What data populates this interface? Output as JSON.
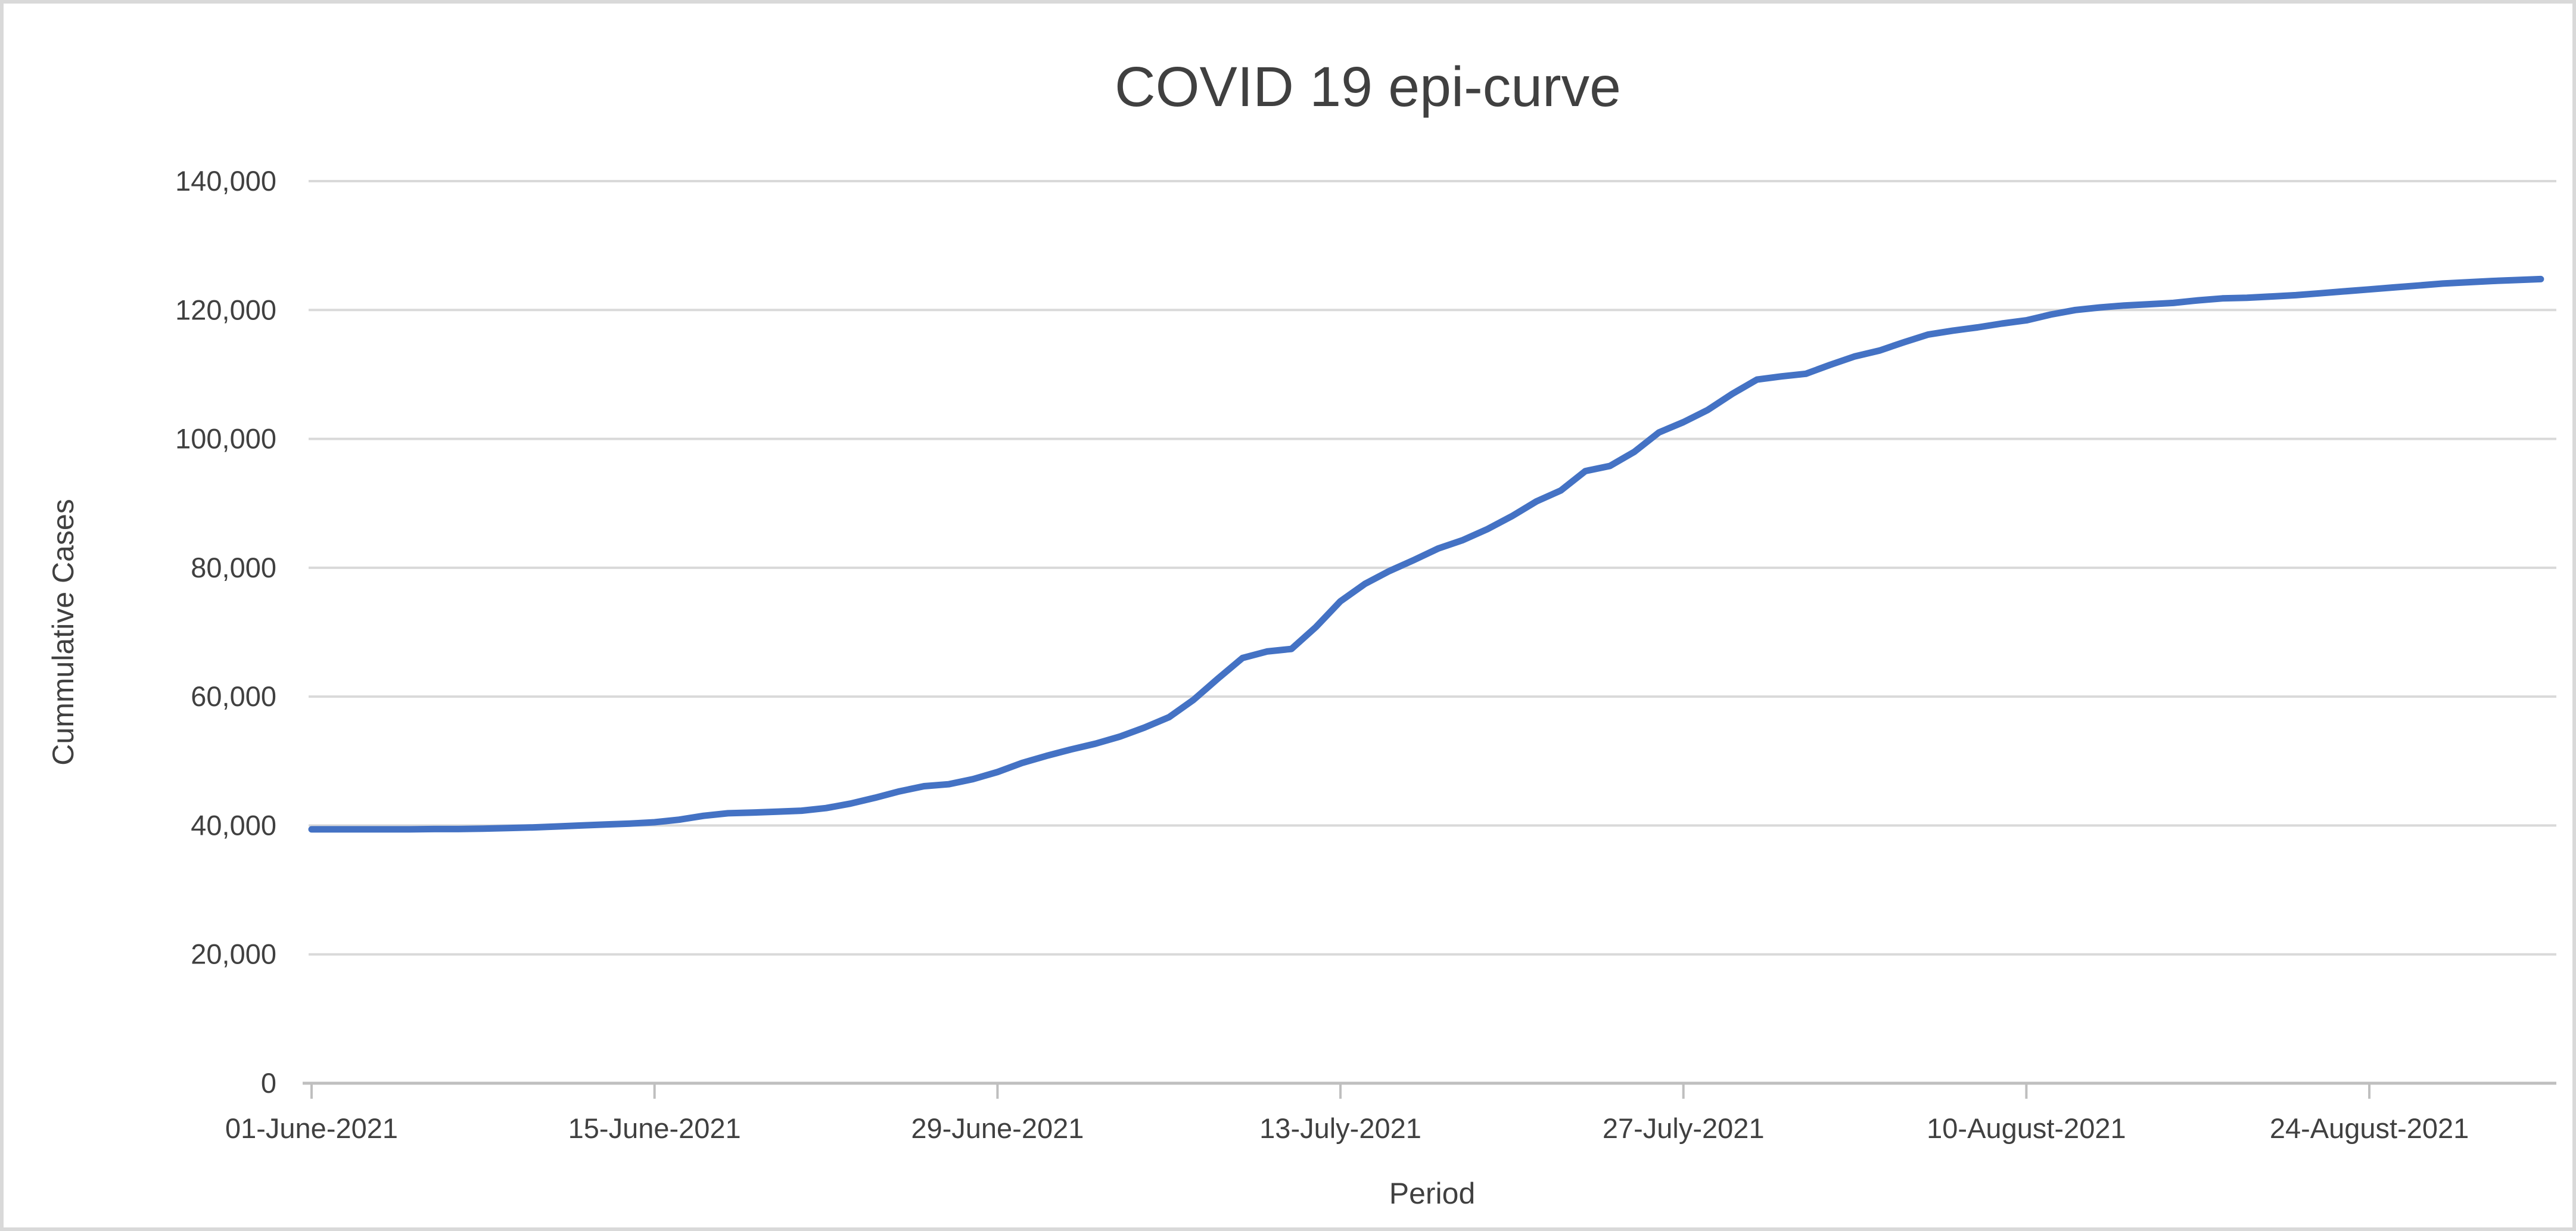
{
  "window": {
    "background": "#ffffff",
    "border_color": "#d9d9d9"
  },
  "chart_data": {
    "type": "line",
    "title": "COVID 19 epi-curve",
    "xlabel": "Period",
    "ylabel": "Cummulative Cases",
    "ylim": [
      0,
      140000
    ],
    "grid": true,
    "legend": "none",
    "line_color": "#4472C4",
    "gridline_color": "#d9d9d9",
    "axis_color": "#bfbfbf",
    "text_color": "#404040",
    "y_ticks": [
      {
        "label": "0",
        "value": 0
      },
      {
        "label": "20,000",
        "value": 20000
      },
      {
        "label": "40,000",
        "value": 40000
      },
      {
        "label": "60,000",
        "value": 60000
      },
      {
        "label": "80,000",
        "value": 80000
      },
      {
        "label": "100,000",
        "value": 100000
      },
      {
        "label": "120,000",
        "value": 120000
      },
      {
        "label": "140,000",
        "value": 140000
      }
    ],
    "x_ticks": [
      {
        "label": "01-June-2021",
        "day": 0
      },
      {
        "label": "15-June-2021",
        "day": 14
      },
      {
        "label": "29-June-2021",
        "day": 28
      },
      {
        "label": "13-July-2021",
        "day": 42
      },
      {
        "label": "27-July-2021",
        "day": 56
      },
      {
        "label": "10-August-2021",
        "day": 70
      },
      {
        "label": "24-August-2021",
        "day": 84
      }
    ],
    "x_start": "01-June-2021",
    "x_end": "31-August-2021",
    "dates": [
      "2021-06-01",
      "2021-06-02",
      "2021-06-03",
      "2021-06-04",
      "2021-06-05",
      "2021-06-06",
      "2021-06-07",
      "2021-06-08",
      "2021-06-09",
      "2021-06-10",
      "2021-06-11",
      "2021-06-12",
      "2021-06-13",
      "2021-06-14",
      "2021-06-15",
      "2021-06-16",
      "2021-06-17",
      "2021-06-18",
      "2021-06-19",
      "2021-06-20",
      "2021-06-21",
      "2021-06-22",
      "2021-06-23",
      "2021-06-24",
      "2021-06-25",
      "2021-06-26",
      "2021-06-27",
      "2021-06-28",
      "2021-06-29",
      "2021-06-30",
      "2021-07-01",
      "2021-07-02",
      "2021-07-03",
      "2021-07-04",
      "2021-07-05",
      "2021-07-06",
      "2021-07-07",
      "2021-07-08",
      "2021-07-09",
      "2021-07-10",
      "2021-07-11",
      "2021-07-12",
      "2021-07-13",
      "2021-07-14",
      "2021-07-15",
      "2021-07-16",
      "2021-07-17",
      "2021-07-18",
      "2021-07-19",
      "2021-07-20",
      "2021-07-21",
      "2021-07-22",
      "2021-07-23",
      "2021-07-24",
      "2021-07-25",
      "2021-07-26",
      "2021-07-27",
      "2021-07-28",
      "2021-07-29",
      "2021-07-30",
      "2021-07-31",
      "2021-08-01",
      "2021-08-02",
      "2021-08-03",
      "2021-08-04",
      "2021-08-05",
      "2021-08-06",
      "2021-08-07",
      "2021-08-08",
      "2021-08-09",
      "2021-08-10",
      "2021-08-11",
      "2021-08-12",
      "2021-08-13",
      "2021-08-14",
      "2021-08-15",
      "2021-08-16",
      "2021-08-17",
      "2021-08-18",
      "2021-08-19",
      "2021-08-20",
      "2021-08-21",
      "2021-08-22",
      "2021-08-23",
      "2021-08-24",
      "2021-08-25",
      "2021-08-26",
      "2021-08-27",
      "2021-08-28",
      "2021-08-29",
      "2021-08-30",
      "2021-08-31"
    ],
    "values": [
      39400,
      39400,
      39400,
      39400,
      39400,
      39450,
      39450,
      39500,
      39600,
      39700,
      39850,
      40000,
      40150,
      40300,
      40500,
      40900,
      41500,
      41900,
      42000,
      42150,
      42300,
      42700,
      43400,
      44300,
      45300,
      46100,
      46400,
      47200,
      48300,
      49700,
      50800,
      51800,
      52700,
      53800,
      55200,
      56800,
      59500,
      62800,
      66000,
      67000,
      67400,
      70800,
      74800,
      77500,
      79500,
      81200,
      83000,
      84300,
      86000,
      88000,
      90300,
      92000,
      95000,
      95800,
      98000,
      101000,
      102600,
      104500,
      107000,
      109200,
      109700,
      110100,
      111500,
      112800,
      113700,
      115000,
      116200,
      116800,
      117300,
      117900,
      118400,
      119300,
      120000,
      120400,
      120700,
      120900,
      121100,
      121500,
      121800,
      121900,
      122100,
      122300,
      122600,
      122900,
      123200,
      123500,
      123800,
      124100,
      124300,
      124500,
      124650,
      124800
    ]
  }
}
